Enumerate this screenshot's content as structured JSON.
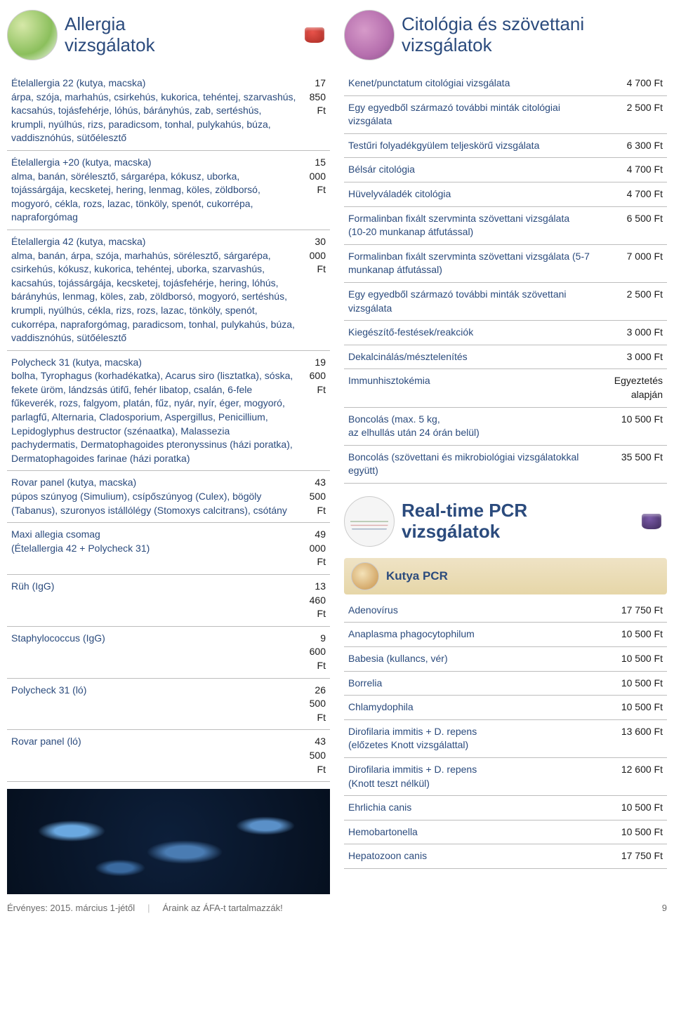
{
  "left": {
    "header": {
      "title": "Allergia\nvizsgálatok"
    },
    "rows": [
      {
        "title": "Ételallergia 22 (kutya, macska)",
        "desc": "árpa, szója, marhahús, csirkehús, kukorica, tehéntej, szarvashús, kacsahús, tojásfehérje, lóhús, bárányhús, zab, sertéshús, krumpli, nyúlhús, rizs, paradicsom, tonhal, pulykahús, búza, vaddisznóhús, sütőélesztő",
        "price": "17 850 Ft"
      },
      {
        "title": "Ételallergia +20 (kutya, macska)",
        "desc": "alma, banán, sörélesztő, sárgarépa, kókusz, uborka, tojássárgája, kecsketej, hering, lenmag, köles, zöldborsó, mogyoró, cékla, rozs, lazac, tönköly, spenót, cukorrépa, napraforgómag",
        "price": "15 000 Ft"
      },
      {
        "title": "Ételallergia 42 (kutya, macska)",
        "desc": "alma, banán, árpa, szója, marhahús, sörélesztő, sárgarépa, csirkehús, kókusz, kukorica, tehéntej, uborka, szarvashús, kacsahús, tojássárgája, kecsketej, tojásfehérje, hering, lóhús, bárányhús, lenmag, köles, zab, zöldborsó, mogyoró, sertéshús, krumpli, nyúlhús, cékla, rizs, rozs, lazac, tönköly, spenót, cukorrépa, napraforgómag, paradicsom, tonhal, pulykahús, búza, vaddisznóhús, sütőélesztő",
        "price": "30 000 Ft"
      },
      {
        "title": "Polycheck 31 (kutya, macska)",
        "desc": "bolha, Tyrophagus (korhadékatka), Acarus siro (lisztatka), sóska, fekete üröm, lándzsás útifű, fehér libatop, csalán, 6-fele fűkeverék, rozs, falgyom, platán, fűz, nyár, nyír, éger, mogyoró, parlagfű, Alternaria, Cladosporium, Aspergillus, Penicillium, Lepidoglyphus destructor (szénaatka), Malassezia pachydermatis, Dermatophagoides pteronyssinus (házi poratka), Dermatophagoides farinae (házi poratka)",
        "price": "19 600 Ft"
      },
      {
        "title": "Rovar panel (kutya, macska)",
        "desc": "púpos szúnyog (Simulium), csípőszúnyog (Culex), bögöly (Tabanus), szuronyos istállólégy (Stomoxys calcitrans), csótány",
        "price": "43 500 Ft"
      },
      {
        "title": "Maxi allegia csomag",
        "desc": "(Ételallergia 42 + Polycheck 31)",
        "price": "49 000 Ft"
      },
      {
        "title": "Rüh (IgG)",
        "desc": "",
        "price": "13 460 Ft"
      },
      {
        "title": "Staphylococcus (IgG)",
        "desc": "",
        "price": "9 600 Ft"
      },
      {
        "title": "Polycheck 31 (ló)",
        "desc": "",
        "price": "26 500 Ft"
      },
      {
        "title": "Rovar panel (ló)",
        "desc": "",
        "price": "43 500 Ft"
      }
    ]
  },
  "right_top": {
    "header": {
      "title": "Citológia és szövettani\nvizsgálatok"
    },
    "rows": [
      {
        "title": "Kenet/punctatum citológiai vizsgálata",
        "desc": "",
        "price": "4 700 Ft"
      },
      {
        "title": "Egy egyedből származó további minták citológiai vizsgálata",
        "desc": "",
        "price": "2 500 Ft"
      },
      {
        "title": "Testűri folyadékgyülem teljeskörű vizsgálata",
        "desc": "",
        "price": "6 300 Ft"
      },
      {
        "title": "Bélsár citológia",
        "desc": "",
        "price": "4 700 Ft"
      },
      {
        "title": "Hüvelyváladék citológia",
        "desc": "",
        "price": "4 700 Ft"
      },
      {
        "title": "Formalinban fixált szervminta szövettani vizsgálata",
        "desc": "(10-20 munkanap átfutással)",
        "price": "6 500 Ft"
      },
      {
        "title": "Formalinban fixált szervminta szövettani vizsgálata (5-7 munkanap átfutással)",
        "desc": "",
        "price": "7 000 Ft"
      },
      {
        "title": "Egy egyedből származó további minták szövettani vizsgálata",
        "desc": "",
        "price": "2 500 Ft"
      },
      {
        "title": "Kiegészítő-festések/reakciók",
        "desc": "",
        "price": "3 000 Ft"
      },
      {
        "title": "Dekalcinálás/mésztelenítés",
        "desc": "",
        "price": "3 000 Ft"
      },
      {
        "title": "Immunhisztokémia",
        "desc": "",
        "price": "Egyeztetés\nalapján"
      },
      {
        "title": "Boncolás (max. 5 kg,",
        "desc": "az elhullás után 24 órán belül)",
        "price": "10 500 Ft"
      },
      {
        "title": "Boncolás (szövettani és mikrobiológiai vizsgálatokkal együtt)",
        "desc": "",
        "price": "35 500 Ft"
      }
    ]
  },
  "right_pcr": {
    "header": {
      "title": "Real-time PCR\nvizsgálatok"
    },
    "sub": "Kutya PCR",
    "rows": [
      {
        "title": "Adenovírus",
        "price": "17 750 Ft"
      },
      {
        "title": "Anaplasma phagocytophilum",
        "price": "10 500 Ft"
      },
      {
        "title": "Babesia (kullancs, vér)",
        "price": "10 500 Ft"
      },
      {
        "title": "Borrelia",
        "price": "10 500 Ft"
      },
      {
        "title": "Chlamydophila",
        "price": "10 500 Ft"
      },
      {
        "title": "Dirofilaria immitis + D. repens\n(előzetes Knott vizsgálattal)",
        "price": "13 600 Ft"
      },
      {
        "title": "Dirofilaria immitis + D. repens\n(Knott teszt nélkül)",
        "price": "12 600 Ft"
      },
      {
        "title": "Ehrlichia canis",
        "price": "10 500 Ft"
      },
      {
        "title": "Hemobartonella",
        "price": "10 500 Ft"
      },
      {
        "title": "Hepatozoon canis",
        "price": "17 750 Ft"
      }
    ]
  },
  "footer": {
    "left": "Érvényes: 2015. március 1-jétől",
    "mid": "Áraink az ÁFA-t tartalmazzák!",
    "page": "9"
  },
  "colors": {
    "heading": "#2b4b7d",
    "rule": "#bdbdbd",
    "band_top": "#efe3c5",
    "band_bot": "#e6d6a8",
    "footer_text": "#6a6a6a"
  }
}
